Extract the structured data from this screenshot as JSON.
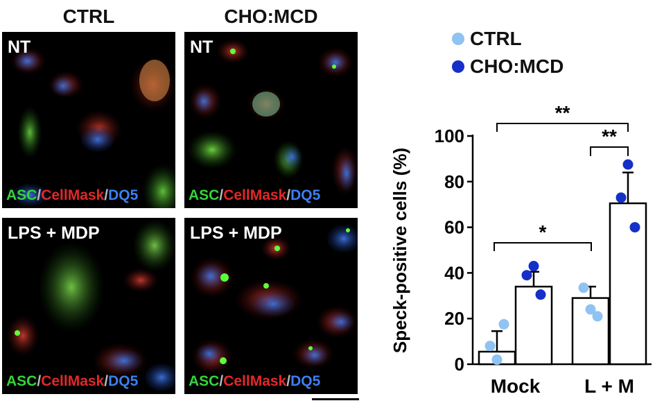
{
  "columns": {
    "left": "CTRL",
    "right": "CHO:MCD"
  },
  "panels": [
    {
      "condition": "NT"
    },
    {
      "condition": "NT"
    },
    {
      "condition": "LPS + MDP"
    },
    {
      "condition": "LPS + MDP"
    }
  ],
  "stain": {
    "asc": "ASC",
    "sep": "/",
    "cellmask": "CellMask",
    "dq5": "DQ5"
  },
  "colors": {
    "ctrl": "#8ec3f2",
    "chomcd": "#1530c8",
    "asc": "#35d43a",
    "cellmask": "#e52727",
    "dq5": "#3c7ff0"
  },
  "chart_data": {
    "type": "bar",
    "ylabel": "Speck-positive cells (%)",
    "ylim": [
      0,
      100
    ],
    "yticks": [
      0,
      20,
      40,
      60,
      80,
      100
    ],
    "categories": [
      "Mock",
      "L + M"
    ],
    "legend_position": "top",
    "series": [
      {
        "name": "CTRL",
        "color": "#8ec3f2",
        "values": [
          5.5,
          29
        ],
        "errors": [
          9,
          5
        ],
        "points": [
          [
            2,
            8,
            17.5
          ],
          [
            24,
            33.5,
            21
          ]
        ]
      },
      {
        "name": "CHO:MCD",
        "color": "#1530c8",
        "values": [
          34,
          70.5
        ],
        "errors": [
          6.5,
          13.5
        ],
        "points": [
          [
            43,
            39,
            30.5
          ],
          [
            87.5,
            73,
            60
          ]
        ]
      }
    ],
    "significance": [
      {
        "from": "Mock CTRL",
        "to": "L + M CTRL",
        "label": "*"
      },
      {
        "from": "L + M CTRL",
        "to": "L + M CHO:MCD",
        "label": "**"
      },
      {
        "from": "Mock CTRL",
        "to": "L + M CHO:MCD",
        "label": "**"
      }
    ]
  }
}
